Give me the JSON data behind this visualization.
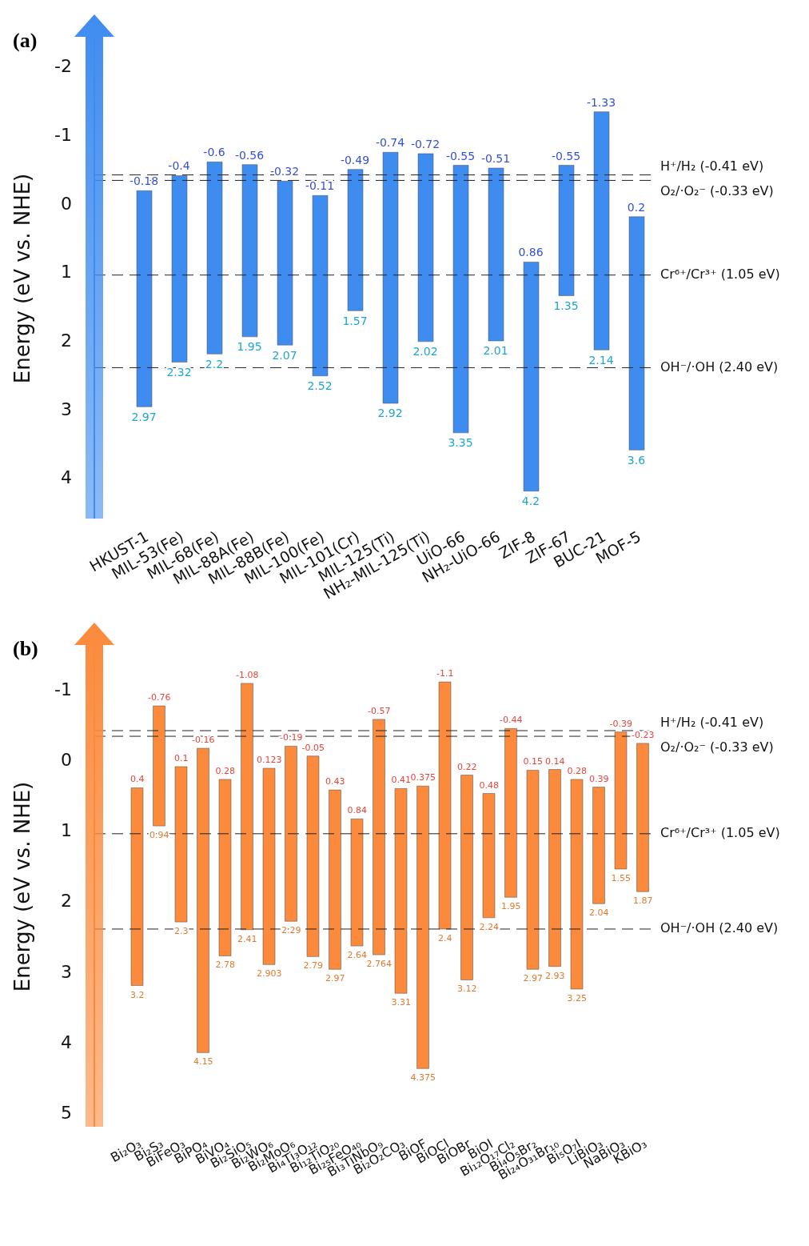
{
  "chart_data": [
    {
      "type": "bar",
      "title": "(a)",
      "ylabel": "Energy (eV vs. NHE)",
      "categories": [
        "HKUST-1",
        "MIL-53(Fe)",
        "MIL-68(Fe)",
        "MIL-88A(Fe)",
        "MIL-88B(Fe)",
        "MIL-100(Fe)",
        "MIL-101(Cr)",
        "MIL-125(Ti)",
        "NH₂-MIL-125(Ti)",
        "UiO-66",
        "NH₂-UiO-66",
        "ZIF-8",
        "ZIF-67",
        "BUC-21",
        "MOF-5"
      ],
      "series": [
        {
          "color": "#3f8cf0",
          "base": [
            -0.18,
            -0.4,
            -0.6,
            -0.56,
            -0.32,
            -0.11,
            -0.49,
            -0.74,
            -0.72,
            -0.55,
            -0.51,
            0.86,
            -0.55,
            -1.33,
            0.2
          ],
          "values": [
            3.15,
            2.72,
            2.8,
            2.51,
            2.39,
            2.63,
            2.06,
            3.66,
            2.74,
            3.9,
            2.52,
            3.34,
            1.9,
            3.47,
            3.4
          ]
        }
      ],
      "ylim": [
        4.6,
        -2.4
      ],
      "yticks": [
        -2,
        -1,
        0,
        1,
        2,
        3,
        4
      ],
      "ref_lines": [
        {
          "axis": "y",
          "value": -0.41,
          "label": "H⁺/H₂ (-0.41 eV)",
          "line_style": "dashed",
          "color": "#222222"
        },
        {
          "axis": "y",
          "value": -0.33,
          "label": "O₂/·O₂⁻ (-0.33 eV)",
          "line_style": "dashed",
          "color": "#222222"
        },
        {
          "axis": "y",
          "value": 1.05,
          "label": "Cr⁶⁺/Cr³⁺ (1.05 eV)",
          "line_style": "dashed",
          "color": "#222222"
        },
        {
          "axis": "y",
          "value": 2.4,
          "label": "OH⁻/·OH (2.40 eV)",
          "line_style": "dashed",
          "color": "#222222"
        }
      ],
      "annotations": [
        {
          "text": "-0.18",
          "x": "HKUST-1",
          "y": -0.18
        },
        {
          "text": "2.97",
          "x": "HKUST-1",
          "y": 2.97
        },
        {
          "text": "-0.4",
          "x": "MIL-53(Fe)",
          "y": -0.4
        },
        {
          "text": "2.32",
          "x": "MIL-53(Fe)",
          "y": 2.32
        },
        {
          "text": "-0.6",
          "x": "MIL-68(Fe)",
          "y": -0.6
        },
        {
          "text": "2.2",
          "x": "MIL-68(Fe)",
          "y": 2.2
        },
        {
          "text": "-0.56",
          "x": "MIL-88A(Fe)",
          "y": -0.56
        },
        {
          "text": "1.95",
          "x": "MIL-88A(Fe)",
          "y": 1.95
        },
        {
          "text": "-0.32",
          "x": "MIL-88B(Fe)",
          "y": -0.32
        },
        {
          "text": "2.07",
          "x": "MIL-88B(Fe)",
          "y": 2.07
        },
        {
          "text": "-0.11",
          "x": "MIL-100(Fe)",
          "y": -0.11
        },
        {
          "text": "2.52",
          "x": "MIL-100(Fe)",
          "y": 2.52
        },
        {
          "text": "-0.49",
          "x": "MIL-101(Cr)",
          "y": -0.49
        },
        {
          "text": "1.57",
          "x": "MIL-101(Cr)",
          "y": 1.57
        },
        {
          "text": "-0.74",
          "x": "MIL-125(Ti)",
          "y": -0.74
        },
        {
          "text": "2.92",
          "x": "MIL-125(Ti)",
          "y": 2.92
        },
        {
          "text": "-0.72",
          "x": "NH₂-MIL-125(Ti)",
          "y": -0.72
        },
        {
          "text": "2.02",
          "x": "NH₂-MIL-125(Ti)",
          "y": 2.02
        },
        {
          "text": "-0.55",
          "x": "UiO-66",
          "y": -0.55
        },
        {
          "text": "3.35",
          "x": "UiO-66",
          "y": 3.35
        },
        {
          "text": "-0.51",
          "x": "NH₂-UiO-66",
          "y": -0.51
        },
        {
          "text": "2.01",
          "x": "NH₂-UiO-66",
          "y": 2.01
        },
        {
          "text": "0.86",
          "x": "ZIF-8",
          "y": 0.86
        },
        {
          "text": "4.2",
          "x": "ZIF-8",
          "y": 4.2
        },
        {
          "text": "-0.55",
          "x": "ZIF-67",
          "y": -0.55
        },
        {
          "text": "1.35",
          "x": "ZIF-67",
          "y": 1.35
        },
        {
          "text": "-1.33",
          "x": "BUC-21",
          "y": -1.33
        },
        {
          "text": "2.14",
          "x": "BUC-21",
          "y": 2.14
        },
        {
          "text": "0.2",
          "x": "MOF-5",
          "y": 0.2
        },
        {
          "text": "3.6",
          "x": "MOF-5",
          "y": 3.6
        }
      ]
    },
    {
      "type": "bar",
      "title": "(b)",
      "ylabel": "Energy (eV vs. NHE)",
      "categories": [
        "Bi₂O₃",
        "Bi₂S₃",
        "BiFeO₃",
        "BiPO₄",
        "BiVO₄",
        "Bi₂SiO₅",
        "Bi₂WO₆",
        "Bi₂MoO₆",
        "Bi₄Ti₃O₁₂",
        "Bi₁₂TiO₂₀",
        "Bi₂₅FeO₄₀",
        "Bi₃TiNbO₉",
        "Bi₂O₂CO₃",
        "BiOF",
        "BiOCl",
        "BiOBr",
        "BiOI",
        "Bi₁₂O₁₇Cl₂",
        "Bi₄O₅Br₂",
        "Bi₂₄O₃₁Br₁₀",
        "Bi₅O₇I",
        "LiBiO₃",
        "NaBiO₃",
        "KBiO₃"
      ],
      "series": [
        {
          "color": "#fb8a3c",
          "base": [
            0.4,
            -0.76,
            0.1,
            -0.16,
            0.28,
            -1.08,
            0.123,
            -0.19,
            -0.05,
            0.43,
            0.84,
            -0.57,
            0.41,
            0.375,
            -1.1,
            0.22,
            0.48,
            -0.44,
            0.15,
            0.14,
            0.28,
            0.39,
            -0.39,
            -0.23
          ],
          "values": [
            2.8,
            1.7,
            2.2,
            4.31,
            2.5,
            3.49,
            2.78,
            2.48,
            2.84,
            2.54,
            1.8,
            3.334,
            2.9,
            4.0,
            3.5,
            2.9,
            1.76,
            2.39,
            2.82,
            2.79,
            2.97,
            1.65,
            1.94,
            2.1
          ]
        }
      ],
      "ylim": [
        5.2,
        -1.6
      ],
      "yticks": [
        -1,
        0,
        1,
        2,
        3,
        4,
        5
      ],
      "ref_lines": [
        {
          "axis": "y",
          "value": -0.41,
          "label": "H⁺/H₂ (-0.41 eV)",
          "line_style": "dashed",
          "color": "#222222"
        },
        {
          "axis": "y",
          "value": -0.33,
          "label": "O₂/·O₂⁻ (-0.33 eV)",
          "line_style": "dashed",
          "color": "#222222"
        },
        {
          "axis": "y",
          "value": 1.05,
          "label": "Cr⁶⁺/Cr³⁺ (1.05 eV)",
          "line_style": "dashed",
          "color": "#222222"
        },
        {
          "axis": "y",
          "value": 2.4,
          "label": "OH⁻/·OH (2.40 eV)",
          "line_style": "dashed",
          "color": "#222222"
        }
      ],
      "annotations": [
        {
          "text": "0.4",
          "x": "Bi₂O₃",
          "y": 0.4
        },
        {
          "text": "3.2",
          "x": "Bi₂O₃",
          "y": 3.2
        },
        {
          "text": "-0.76",
          "x": "Bi₂S₃",
          "y": -0.76
        },
        {
          "text": "0.94",
          "x": "Bi₂S₃",
          "y": 0.94
        },
        {
          "text": "0.1",
          "x": "BiFeO₃",
          "y": 0.1
        },
        {
          "text": "2.3",
          "x": "BiFeO₃",
          "y": 2.3
        },
        {
          "text": "-0.16",
          "x": "BiPO₄",
          "y": -0.16
        },
        {
          "text": "4.15",
          "x": "BiPO₄",
          "y": 4.15
        },
        {
          "text": "0.28",
          "x": "BiVO₄",
          "y": 0.28
        },
        {
          "text": "2.78",
          "x": "BiVO₄",
          "y": 2.78
        },
        {
          "text": "-1.08",
          "x": "Bi₂SiO₅",
          "y": -1.08
        },
        {
          "text": "2.41",
          "x": "Bi₂SiO₅",
          "y": 2.41
        },
        {
          "text": "0.123",
          "x": "Bi₂WO₆",
          "y": 0.123
        },
        {
          "text": "2.903",
          "x": "Bi₂WO₆",
          "y": 2.903
        },
        {
          "text": "-0.19",
          "x": "Bi₂MoO₆",
          "y": -0.19
        },
        {
          "text": "2.29",
          "x": "Bi₂MoO₆",
          "y": 2.29
        },
        {
          "text": "-0.05",
          "x": "Bi₄Ti₃O₁₂",
          "y": -0.05
        },
        {
          "text": "2.79",
          "x": "Bi₄Ti₃O₁₂",
          "y": 2.79
        },
        {
          "text": "0.43",
          "x": "Bi₁₂TiO₂₀",
          "y": 0.43
        },
        {
          "text": "2.97",
          "x": "Bi₁₂TiO₂₀",
          "y": 2.97
        },
        {
          "text": "0.84",
          "x": "Bi₂₅FeO₄₀",
          "y": 0.84
        },
        {
          "text": "2.64",
          "x": "Bi₂₅FeO₄₀",
          "y": 2.64
        },
        {
          "text": "-0.57",
          "x": "Bi₃TiNbO₉",
          "y": -0.57
        },
        {
          "text": "2.764",
          "x": "Bi₃TiNbO₉",
          "y": 2.764
        },
        {
          "text": "0.41",
          "x": "Bi₂O₂CO₃",
          "y": 0.41
        },
        {
          "text": "3.31",
          "x": "Bi₂O₂CO₃",
          "y": 3.31
        },
        {
          "text": "0.375",
          "x": "BiOF",
          "y": 0.375
        },
        {
          "text": "4.375",
          "x": "BiOF",
          "y": 4.375
        },
        {
          "text": "-1.1",
          "x": "BiOCl",
          "y": -1.1
        },
        {
          "text": "2.4",
          "x": "BiOCl",
          "y": 2.4
        },
        {
          "text": "0.22",
          "x": "BiOBr",
          "y": 0.22
        },
        {
          "text": "3.12",
          "x": "BiOBr",
          "y": 3.12
        },
        {
          "text": "0.48",
          "x": "BiOI",
          "y": 0.48
        },
        {
          "text": "2.24",
          "x": "BiOI",
          "y": 2.24
        },
        {
          "text": "-0.44",
          "x": "Bi₁₂O₁₇Cl₂",
          "y": -0.44
        },
        {
          "text": "1.95",
          "x": "Bi₁₂O₁₇Cl₂",
          "y": 1.95
        },
        {
          "text": "0.15",
          "x": "Bi₄O₅Br₂",
          "y": 0.15
        },
        {
          "text": "2.97",
          "x": "Bi₄O₅Br₂",
          "y": 2.97
        },
        {
          "text": "0.14",
          "x": "Bi₂₄O₃₁Br₁₀",
          "y": 0.14
        },
        {
          "text": "2.93",
          "x": "Bi₂₄O₃₁Br₁₀",
          "y": 2.93
        },
        {
          "text": "0.28",
          "x": "Bi₅O₇I",
          "y": 0.28
        },
        {
          "text": "3.25",
          "x": "Bi₅O₇I",
          "y": 3.25
        },
        {
          "text": "0.39",
          "x": "LiBiO₃",
          "y": 0.39
        },
        {
          "text": "2.04",
          "x": "LiBiO₃",
          "y": 2.04
        },
        {
          "text": "-0.39",
          "x": "NaBiO₃",
          "y": -0.39
        },
        {
          "text": "1.55",
          "x": "NaBiO₃",
          "y": 1.55
        },
        {
          "text": "-0.23",
          "x": "KBiO₃",
          "y": -0.23
        },
        {
          "text": "1.87",
          "x": "KBiO₃",
          "y": 1.87
        }
      ]
    }
  ]
}
